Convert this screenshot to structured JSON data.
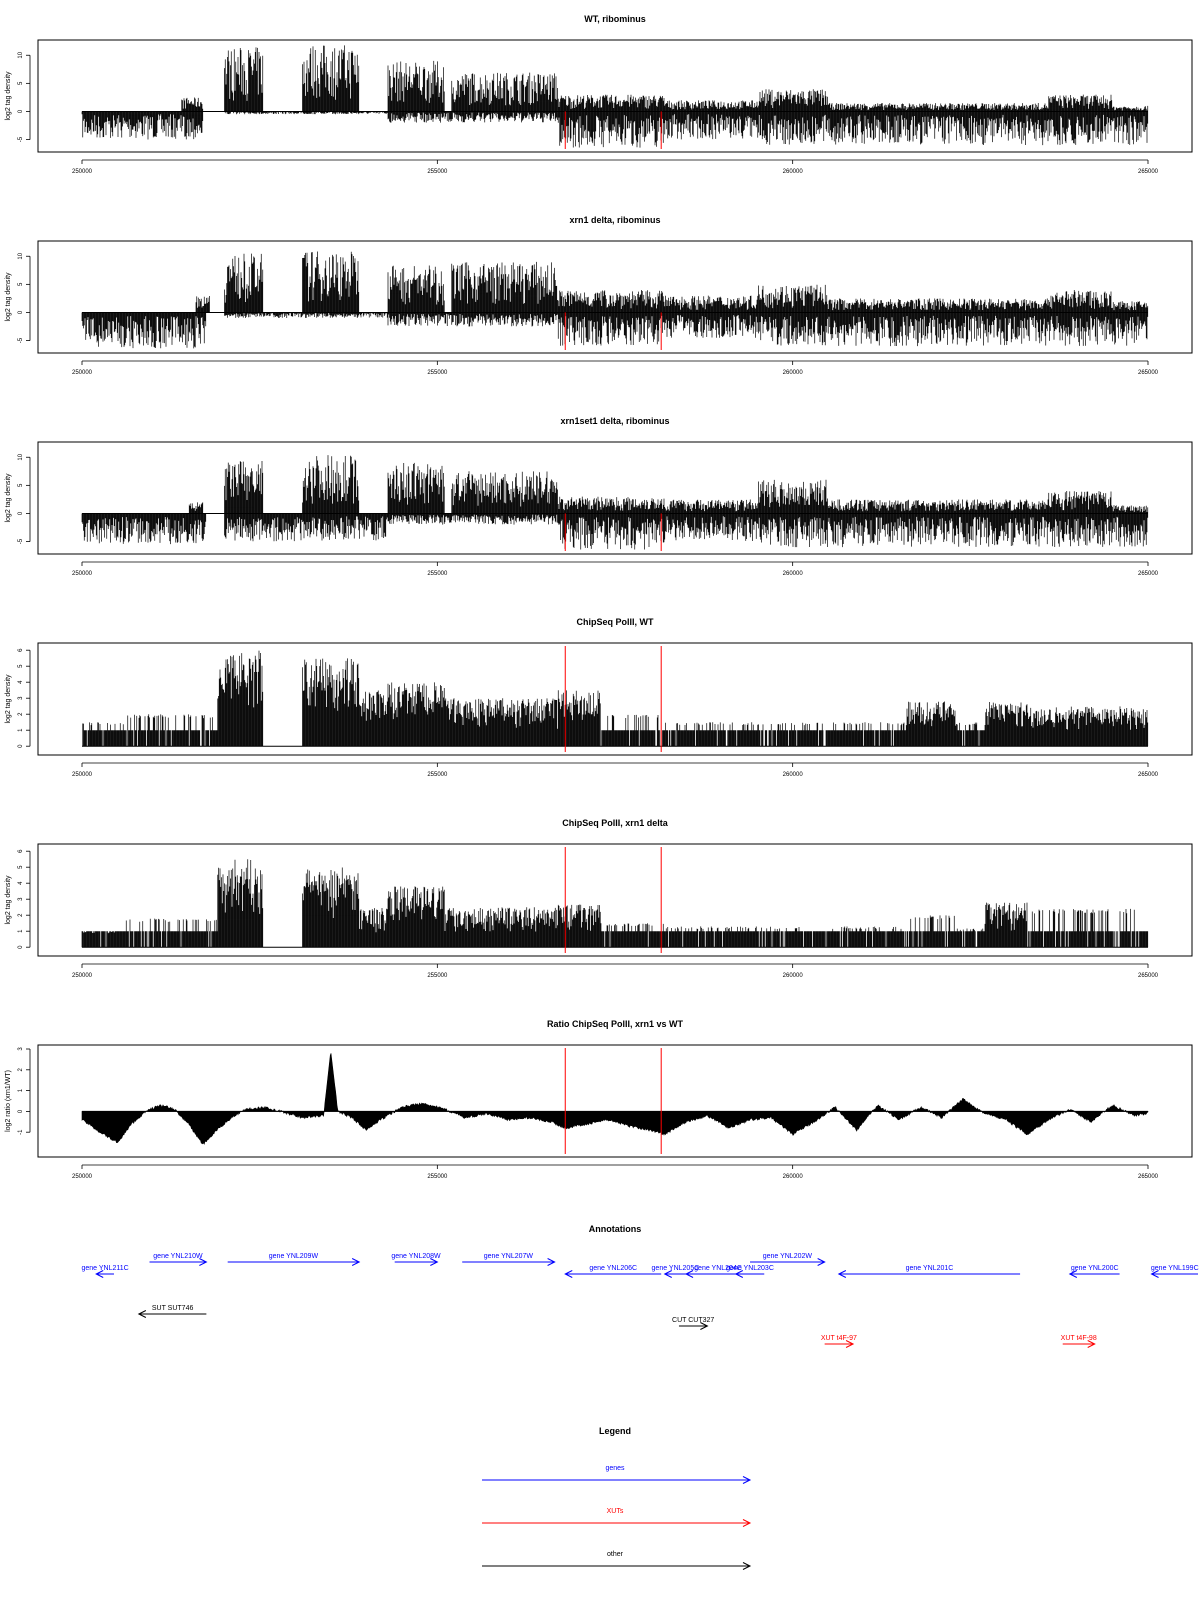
{
  "chart_data": [
    {
      "type": "bar",
      "title": "WT, ribominus",
      "xlabel": "",
      "ylabel": "log2 tag density",
      "x_range": [
        250000,
        265000
      ],
      "ylim": [
        -6.5,
        12
      ],
      "x_ticks": [
        "250000",
        "255000",
        "260000",
        "265000"
      ],
      "y_ticks": [
        "-5",
        "0",
        "5",
        "10"
      ],
      "y_tick_values": [
        -5,
        0,
        5,
        10
      ],
      "markers": [
        256800,
        258150
      ],
      "profile": {
        "positive": [
          {
            "from": 251400,
            "to": 251700,
            "max": 2.5
          },
          {
            "from": 252000,
            "to": 252550,
            "max": 11.5
          },
          {
            "from": 253100,
            "to": 253900,
            "max": 12
          },
          {
            "from": 254300,
            "to": 255100,
            "max": 9
          },
          {
            "from": 255200,
            "to": 256700,
            "max": 7
          },
          {
            "from": 256700,
            "to": 258200,
            "max": 3
          },
          {
            "from": 258200,
            "to": 259500,
            "max": 2
          },
          {
            "from": 259500,
            "to": 260500,
            "max": 4
          },
          {
            "from": 260500,
            "to": 263600,
            "max": 1.5
          },
          {
            "from": 263600,
            "to": 264500,
            "max": 3
          },
          {
            "from": 264500,
            "to": 265000,
            "max": 1
          }
        ],
        "negative": [
          {
            "from": 250000,
            "to": 251700,
            "max": 5
          },
          {
            "from": 251700,
            "to": 252000,
            "max": 0
          },
          {
            "from": 252000,
            "to": 254300,
            "max": 0.5
          },
          {
            "from": 254300,
            "to": 256700,
            "max": 2
          },
          {
            "from": 256700,
            "to": 258200,
            "max": 6.5
          },
          {
            "from": 258200,
            "to": 259500,
            "max": 5
          },
          {
            "from": 259500,
            "to": 265000,
            "max": 6
          }
        ]
      }
    },
    {
      "type": "bar",
      "title": "xrn1 delta, ribominus",
      "xlabel": "",
      "ylabel": "log2 tag density",
      "x_range": [
        250000,
        265000
      ],
      "ylim": [
        -6.5,
        12
      ],
      "x_ticks": [
        "250000",
        "255000",
        "260000",
        "265000"
      ],
      "y_ticks": [
        "-5",
        "0",
        "5",
        "10"
      ],
      "y_tick_values": [
        -5,
        0,
        5,
        10
      ],
      "markers": [
        256800,
        258150
      ],
      "profile": {
        "positive": [
          {
            "from": 251600,
            "to": 251800,
            "max": 3
          },
          {
            "from": 252000,
            "to": 252550,
            "max": 10.5
          },
          {
            "from": 253100,
            "to": 253900,
            "max": 11
          },
          {
            "from": 254300,
            "to": 255100,
            "max": 8.5
          },
          {
            "from": 255200,
            "to": 256700,
            "max": 9
          },
          {
            "from": 256700,
            "to": 258200,
            "max": 4
          },
          {
            "from": 258200,
            "to": 259500,
            "max": 3
          },
          {
            "from": 259500,
            "to": 260500,
            "max": 5
          },
          {
            "from": 260500,
            "to": 263600,
            "max": 2.5
          },
          {
            "from": 263600,
            "to": 264500,
            "max": 4
          },
          {
            "from": 264500,
            "to": 265000,
            "max": 2
          }
        ],
        "negative": [
          {
            "from": 250000,
            "to": 251750,
            "max": 6.5
          },
          {
            "from": 251750,
            "to": 252000,
            "max": 0
          },
          {
            "from": 252000,
            "to": 254300,
            "max": 1
          },
          {
            "from": 254300,
            "to": 256700,
            "max": 2.5
          },
          {
            "from": 256700,
            "to": 258200,
            "max": 6
          },
          {
            "from": 258200,
            "to": 259500,
            "max": 4.5
          },
          {
            "from": 259500,
            "to": 265000,
            "max": 6
          }
        ]
      }
    },
    {
      "type": "bar",
      "title": "xrn1set1 delta, ribominus",
      "xlabel": "",
      "ylabel": "log2 tag density",
      "x_range": [
        250000,
        265000
      ],
      "ylim": [
        -6.5,
        12
      ],
      "x_ticks": [
        "250000",
        "255000",
        "260000",
        "265000"
      ],
      "y_ticks": [
        "-5",
        "0",
        "5",
        "10"
      ],
      "y_tick_values": [
        -5,
        0,
        5,
        10
      ],
      "markers": [
        256800,
        258150
      ],
      "profile": {
        "positive": [
          {
            "from": 251500,
            "to": 251700,
            "max": 2
          },
          {
            "from": 252000,
            "to": 252550,
            "max": 9.5
          },
          {
            "from": 253100,
            "to": 253900,
            "max": 10.5
          },
          {
            "from": 254300,
            "to": 255100,
            "max": 9
          },
          {
            "from": 255200,
            "to": 256700,
            "max": 7.5
          },
          {
            "from": 256700,
            "to": 258200,
            "max": 3
          },
          {
            "from": 258200,
            "to": 259500,
            "max": 2.5
          },
          {
            "from": 259500,
            "to": 260500,
            "max": 6
          },
          {
            "from": 260500,
            "to": 263600,
            "max": 2.5
          },
          {
            "from": 263600,
            "to": 264500,
            "max": 4
          },
          {
            "from": 264500,
            "to": 265000,
            "max": 1.5
          }
        ],
        "negative": [
          {
            "from": 250000,
            "to": 251750,
            "max": 5.5
          },
          {
            "from": 251750,
            "to": 252000,
            "max": 0
          },
          {
            "from": 252000,
            "to": 254300,
            "max": 5
          },
          {
            "from": 254300,
            "to": 256700,
            "max": 2
          },
          {
            "from": 256700,
            "to": 258200,
            "max": 6.5
          },
          {
            "from": 258200,
            "to": 259500,
            "max": 5
          },
          {
            "from": 259500,
            "to": 265000,
            "max": 6
          }
        ]
      }
    },
    {
      "type": "bar",
      "title": "ChipSeq PolII, WT",
      "xlabel": "",
      "ylabel": "log2 tag density",
      "x_range": [
        250000,
        265000
      ],
      "ylim": [
        -0.3,
        6.2
      ],
      "x_ticks": [
        "250000",
        "255000",
        "260000",
        "265000"
      ],
      "y_ticks": [
        "0",
        "1",
        "2",
        "3",
        "4",
        "5",
        "6"
      ],
      "y_tick_values": [
        0,
        1,
        2,
        3,
        4,
        5,
        6
      ],
      "markers": [
        256800,
        258150
      ],
      "profile": {
        "positive": [
          {
            "from": 250000,
            "to": 250600,
            "max": 1.5
          },
          {
            "from": 250600,
            "to": 251900,
            "max": 2
          },
          {
            "from": 251900,
            "to": 252550,
            "max": 6
          },
          {
            "from": 253100,
            "to": 253900,
            "max": 5.5
          },
          {
            "from": 253900,
            "to": 254300,
            "max": 3.5
          },
          {
            "from": 254300,
            "to": 255100,
            "max": 4
          },
          {
            "from": 255100,
            "to": 256700,
            "max": 3
          },
          {
            "from": 256700,
            "to": 257300,
            "max": 3.5
          },
          {
            "from": 257300,
            "to": 258200,
            "max": 2
          },
          {
            "from": 258200,
            "to": 261600,
            "max": 1.5
          },
          {
            "from": 261600,
            "to": 262300,
            "max": 2.8
          },
          {
            "from": 262300,
            "to": 262700,
            "max": 1.5
          },
          {
            "from": 262700,
            "to": 263300,
            "max": 2.8
          },
          {
            "from": 263300,
            "to": 265000,
            "max": 2.5
          }
        ],
        "negative": []
      }
    },
    {
      "type": "bar",
      "title": "ChipSeq PolII, xrn1 delta",
      "xlabel": "",
      "ylabel": "log2 tag density",
      "x_range": [
        250000,
        265000
      ],
      "ylim": [
        -0.3,
        6.2
      ],
      "x_ticks": [
        "250000",
        "255000",
        "260000",
        "265000"
      ],
      "y_ticks": [
        "0",
        "1",
        "2",
        "3",
        "4",
        "5",
        "6"
      ],
      "y_tick_values": [
        0,
        1,
        2,
        3,
        4,
        5,
        6
      ],
      "markers": [
        256800,
        258150
      ],
      "profile": {
        "positive": [
          {
            "from": 250000,
            "to": 250600,
            "max": 1
          },
          {
            "from": 250600,
            "to": 251900,
            "max": 1.8
          },
          {
            "from": 251900,
            "to": 252550,
            "max": 5.5
          },
          {
            "from": 253100,
            "to": 253900,
            "max": 5
          },
          {
            "from": 253900,
            "to": 254300,
            "max": 2.5
          },
          {
            "from": 254300,
            "to": 255100,
            "max": 3.8
          },
          {
            "from": 255100,
            "to": 256700,
            "max": 2.5
          },
          {
            "from": 256700,
            "to": 257300,
            "max": 2.7
          },
          {
            "from": 257300,
            "to": 258200,
            "max": 1.5
          },
          {
            "from": 258200,
            "to": 261600,
            "max": 1.3
          },
          {
            "from": 261600,
            "to": 262300,
            "max": 2
          },
          {
            "from": 262300,
            "to": 262700,
            "max": 1.2
          },
          {
            "from": 262700,
            "to": 263300,
            "max": 2.8
          },
          {
            "from": 263300,
            "to": 265000,
            "max": 2.4
          }
        ],
        "negative": []
      }
    },
    {
      "type": "area",
      "title": "Ratio ChipSeq PolII, xrn1 vs WT",
      "xlabel": "",
      "ylabel": "log2 ratio (xrn1/WT)",
      "x_range": [
        250000,
        265000
      ],
      "ylim": [
        -2,
        3
      ],
      "x_ticks": [
        "250000",
        "255000",
        "260000",
        "265000"
      ],
      "y_ticks": [
        "-1",
        "0",
        "1",
        "2",
        "3"
      ],
      "y_tick_values": [
        -1,
        0,
        1,
        2,
        3
      ],
      "markers": [
        256800,
        258150
      ],
      "x": [
        250000,
        250300,
        250500,
        250700,
        250900,
        251100,
        251300,
        251500,
        251700,
        251900,
        252100,
        252300,
        252550,
        252800,
        253100,
        253400,
        253500,
        253600,
        253800,
        254000,
        254200,
        254500,
        254800,
        255100,
        255400,
        255700,
        256000,
        256300,
        256600,
        256800,
        257100,
        257400,
        257700,
        258000,
        258200,
        258500,
        258800,
        259100,
        259400,
        259700,
        260000,
        260300,
        260600,
        260900,
        261200,
        261500,
        261800,
        262100,
        262400,
        262700,
        263000,
        263300,
        263600,
        263900,
        264200,
        264500,
        264800,
        265000
      ],
      "y": [
        -0.4,
        -1.1,
        -1.5,
        -0.6,
        0.0,
        0.3,
        0.1,
        -0.6,
        -1.6,
        -0.9,
        -0.3,
        0.1,
        0.2,
        0.0,
        -0.3,
        -0.2,
        2.9,
        0.0,
        -0.3,
        -0.9,
        -0.4,
        0.2,
        0.4,
        0.1,
        -0.3,
        -0.1,
        -0.4,
        -0.3,
        -0.5,
        -0.8,
        -0.6,
        -0.4,
        -0.7,
        -0.9,
        -1.1,
        -0.5,
        -0.2,
        -0.8,
        -0.4,
        -0.3,
        -1.1,
        -0.5,
        0.2,
        -0.9,
        0.3,
        -0.4,
        0.2,
        -0.3,
        0.6,
        -0.1,
        -0.4,
        -1.1,
        -0.4,
        0.1,
        -0.5,
        0.3,
        -0.2,
        -0.1
      ]
    }
  ],
  "annotations": {
    "title": "Annotations",
    "features": [
      {
        "label": "gene YNL211C",
        "kind": "gene",
        "color": "#0000ff",
        "strand": "-",
        "row": 1,
        "from": 250200,
        "to": 250450
      },
      {
        "label": "gene YNL210W",
        "kind": "gene",
        "color": "#0000ff",
        "strand": "+",
        "row": 0,
        "from": 250950,
        "to": 251750
      },
      {
        "label": "gene YNL209W",
        "kind": "gene",
        "color": "#0000ff",
        "strand": "+",
        "row": 0,
        "from": 252050,
        "to": 253900
      },
      {
        "label": "gene YNL208W",
        "kind": "gene",
        "color": "#0000ff",
        "strand": "+",
        "row": 0,
        "from": 254400,
        "to": 255000
      },
      {
        "label": "gene YNL207W",
        "kind": "gene",
        "color": "#0000ff",
        "strand": "+",
        "row": 0,
        "from": 255350,
        "to": 256650
      },
      {
        "label": "gene YNL206C",
        "kind": "gene",
        "color": "#0000ff",
        "strand": "-",
        "row": 1,
        "from": 256800,
        "to": 258150
      },
      {
        "label": "gene YNL205C",
        "kind": "gene",
        "color": "#0000ff",
        "strand": "-",
        "row": 1,
        "from": 258200,
        "to": 258500
      },
      {
        "label": "gene YNL204C",
        "kind": "gene",
        "color": "#0000ff",
        "strand": "-",
        "row": 1,
        "from": 258500,
        "to": 259400
      },
      {
        "label": "gene YNL203C",
        "kind": "gene",
        "color": "#0000ff",
        "strand": "-",
        "row": 1,
        "from": 259200,
        "to": 259600
      },
      {
        "label": "gene YNL202W",
        "kind": "gene",
        "color": "#0000ff",
        "strand": "+",
        "row": 0,
        "from": 259400,
        "to": 260450
      },
      {
        "label": "gene YNL201C",
        "kind": "gene",
        "color": "#0000ff",
        "strand": "-",
        "row": 1,
        "from": 260650,
        "to": 263200
      },
      {
        "label": "gene YNL200C",
        "kind": "gene",
        "color": "#0000ff",
        "strand": "-",
        "row": 1,
        "from": 263900,
        "to": 264600
      },
      {
        "label": "gene YNL199C",
        "kind": "gene",
        "color": "#0000ff",
        "strand": "-",
        "row": 1,
        "from": 265050,
        "to": 266000
      },
      {
        "label": "SUT SUT746",
        "kind": "SUT",
        "color": "#000000",
        "strand": "-",
        "row": 2,
        "from": 250800,
        "to": 251750
      },
      {
        "label": "CUT CUT327",
        "kind": "CUT",
        "color": "#000000",
        "strand": "+",
        "row": 3,
        "from": 258400,
        "to": 258800
      },
      {
        "label": "XUT t4F-97",
        "kind": "XUT",
        "color": "#ff0000",
        "strand": "+",
        "row": 4,
        "from": 260450,
        "to": 260850
      },
      {
        "label": "XUT t4F-98",
        "kind": "XUT",
        "color": "#ff0000",
        "strand": "+",
        "row": 4,
        "from": 263800,
        "to": 264250
      }
    ]
  },
  "legend": {
    "title": "Legend",
    "entries": [
      {
        "label": "genes",
        "color": "#0000ff"
      },
      {
        "label": "XUTs",
        "color": "#ff0000"
      },
      {
        "label": "other",
        "color": "#000000"
      }
    ]
  },
  "colors": {
    "bars": "#000000",
    "marker": "#ff0000",
    "gene": "#0000ff",
    "xut": "#ff0000",
    "other": "#000000"
  }
}
